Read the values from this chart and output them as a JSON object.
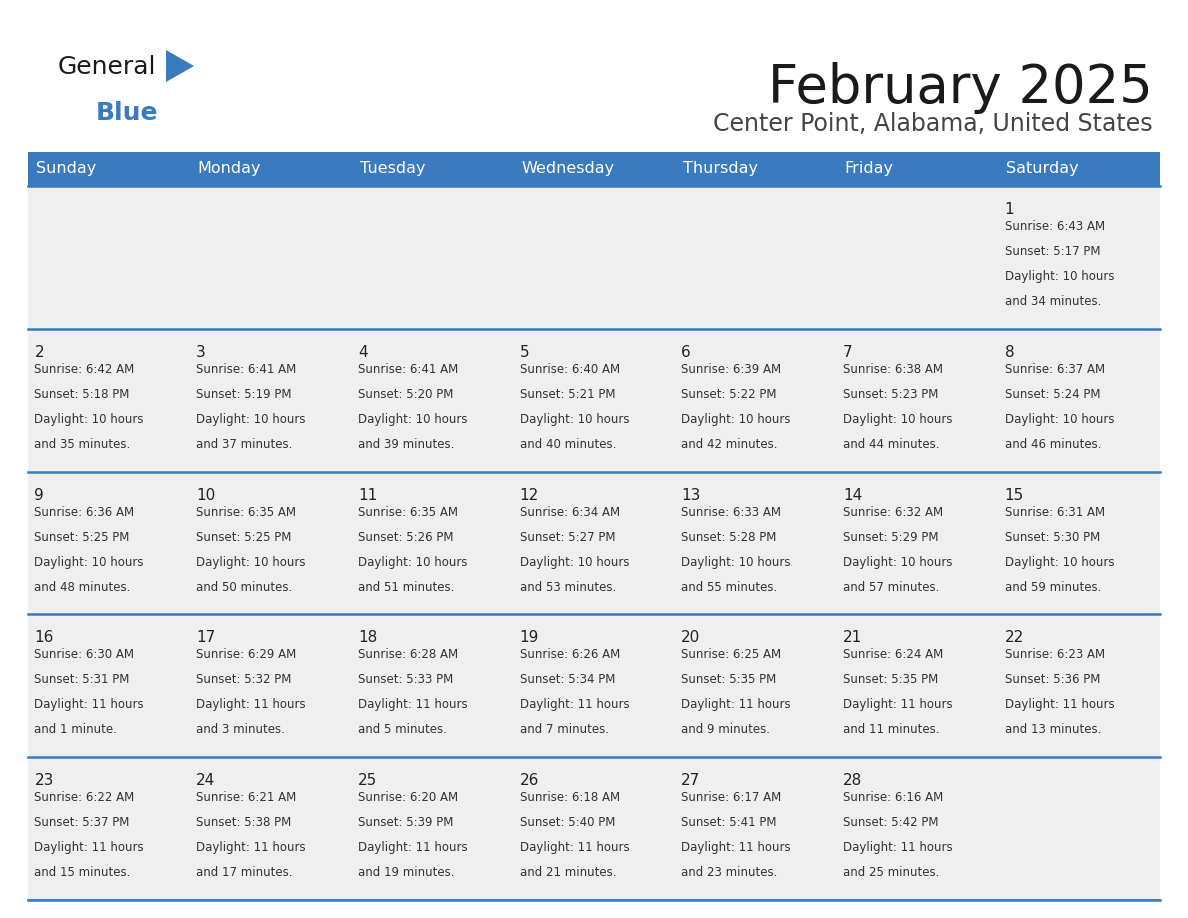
{
  "title": "February 2025",
  "subtitle": "Center Point, Alabama, United States",
  "header_color": "#3a7abf",
  "header_text_color": "#ffffff",
  "cell_bg_color": "#efefef",
  "border_color": "#3a7abf",
  "day_names": [
    "Sunday",
    "Monday",
    "Tuesday",
    "Wednesday",
    "Thursday",
    "Friday",
    "Saturday"
  ],
  "title_color": "#1a1a1a",
  "subtitle_color": "#444444",
  "day_number_color": "#222222",
  "cell_text_color": "#333333",
  "logo_general_color": "#1a1a1a",
  "logo_blue_color": "#3a7abf",
  "logo_triangle_color": "#3a7abf",
  "days": [
    {
      "day": 1,
      "col": 6,
      "row": 0,
      "sunrise": "6:43 AM",
      "sunset": "5:17 PM",
      "daylight": "10 hours and 34 minutes."
    },
    {
      "day": 2,
      "col": 0,
      "row": 1,
      "sunrise": "6:42 AM",
      "sunset": "5:18 PM",
      "daylight": "10 hours and 35 minutes."
    },
    {
      "day": 3,
      "col": 1,
      "row": 1,
      "sunrise": "6:41 AM",
      "sunset": "5:19 PM",
      "daylight": "10 hours and 37 minutes."
    },
    {
      "day": 4,
      "col": 2,
      "row": 1,
      "sunrise": "6:41 AM",
      "sunset": "5:20 PM",
      "daylight": "10 hours and 39 minutes."
    },
    {
      "day": 5,
      "col": 3,
      "row": 1,
      "sunrise": "6:40 AM",
      "sunset": "5:21 PM",
      "daylight": "10 hours and 40 minutes."
    },
    {
      "day": 6,
      "col": 4,
      "row": 1,
      "sunrise": "6:39 AM",
      "sunset": "5:22 PM",
      "daylight": "10 hours and 42 minutes."
    },
    {
      "day": 7,
      "col": 5,
      "row": 1,
      "sunrise": "6:38 AM",
      "sunset": "5:23 PM",
      "daylight": "10 hours and 44 minutes."
    },
    {
      "day": 8,
      "col": 6,
      "row": 1,
      "sunrise": "6:37 AM",
      "sunset": "5:24 PM",
      "daylight": "10 hours and 46 minutes."
    },
    {
      "day": 9,
      "col": 0,
      "row": 2,
      "sunrise": "6:36 AM",
      "sunset": "5:25 PM",
      "daylight": "10 hours and 48 minutes."
    },
    {
      "day": 10,
      "col": 1,
      "row": 2,
      "sunrise": "6:35 AM",
      "sunset": "5:25 PM",
      "daylight": "10 hours and 50 minutes."
    },
    {
      "day": 11,
      "col": 2,
      "row": 2,
      "sunrise": "6:35 AM",
      "sunset": "5:26 PM",
      "daylight": "10 hours and 51 minutes."
    },
    {
      "day": 12,
      "col": 3,
      "row": 2,
      "sunrise": "6:34 AM",
      "sunset": "5:27 PM",
      "daylight": "10 hours and 53 minutes."
    },
    {
      "day": 13,
      "col": 4,
      "row": 2,
      "sunrise": "6:33 AM",
      "sunset": "5:28 PM",
      "daylight": "10 hours and 55 minutes."
    },
    {
      "day": 14,
      "col": 5,
      "row": 2,
      "sunrise": "6:32 AM",
      "sunset": "5:29 PM",
      "daylight": "10 hours and 57 minutes."
    },
    {
      "day": 15,
      "col": 6,
      "row": 2,
      "sunrise": "6:31 AM",
      "sunset": "5:30 PM",
      "daylight": "10 hours and 59 minutes."
    },
    {
      "day": 16,
      "col": 0,
      "row": 3,
      "sunrise": "6:30 AM",
      "sunset": "5:31 PM",
      "daylight": "11 hours and 1 minute."
    },
    {
      "day": 17,
      "col": 1,
      "row": 3,
      "sunrise": "6:29 AM",
      "sunset": "5:32 PM",
      "daylight": "11 hours and 3 minutes."
    },
    {
      "day": 18,
      "col": 2,
      "row": 3,
      "sunrise": "6:28 AM",
      "sunset": "5:33 PM",
      "daylight": "11 hours and 5 minutes."
    },
    {
      "day": 19,
      "col": 3,
      "row": 3,
      "sunrise": "6:26 AM",
      "sunset": "5:34 PM",
      "daylight": "11 hours and 7 minutes."
    },
    {
      "day": 20,
      "col": 4,
      "row": 3,
      "sunrise": "6:25 AM",
      "sunset": "5:35 PM",
      "daylight": "11 hours and 9 minutes."
    },
    {
      "day": 21,
      "col": 5,
      "row": 3,
      "sunrise": "6:24 AM",
      "sunset": "5:35 PM",
      "daylight": "11 hours and 11 minutes."
    },
    {
      "day": 22,
      "col": 6,
      "row": 3,
      "sunrise": "6:23 AM",
      "sunset": "5:36 PM",
      "daylight": "11 hours and 13 minutes."
    },
    {
      "day": 23,
      "col": 0,
      "row": 4,
      "sunrise": "6:22 AM",
      "sunset": "5:37 PM",
      "daylight": "11 hours and 15 minutes."
    },
    {
      "day": 24,
      "col": 1,
      "row": 4,
      "sunrise": "6:21 AM",
      "sunset": "5:38 PM",
      "daylight": "11 hours and 17 minutes."
    },
    {
      "day": 25,
      "col": 2,
      "row": 4,
      "sunrise": "6:20 AM",
      "sunset": "5:39 PM",
      "daylight": "11 hours and 19 minutes."
    },
    {
      "day": 26,
      "col": 3,
      "row": 4,
      "sunrise": "6:18 AM",
      "sunset": "5:40 PM",
      "daylight": "11 hours and 21 minutes."
    },
    {
      "day": 27,
      "col": 4,
      "row": 4,
      "sunrise": "6:17 AM",
      "sunset": "5:41 PM",
      "daylight": "11 hours and 23 minutes."
    },
    {
      "day": 28,
      "col": 5,
      "row": 4,
      "sunrise": "6:16 AM",
      "sunset": "5:42 PM",
      "daylight": "11 hours and 25 minutes."
    }
  ]
}
